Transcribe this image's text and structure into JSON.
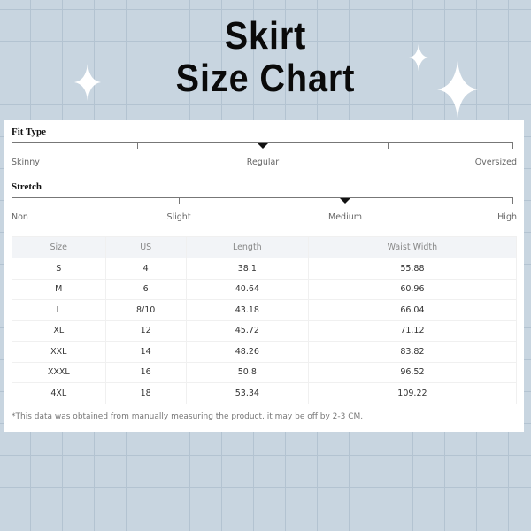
{
  "title": {
    "line1": "Skirt",
    "line2": "Size Chart"
  },
  "fit_type": {
    "label": "Fit Type",
    "options": [
      "Skinny",
      "Regular",
      "Oversized"
    ],
    "selected": "Regular"
  },
  "stretch": {
    "label": "Stretch",
    "options": [
      "Non",
      "Slight",
      "Medium",
      "High"
    ],
    "selected": "Medium"
  },
  "table": {
    "headers": [
      "Size",
      "US",
      "Length",
      "Waist Width"
    ],
    "rows": [
      [
        "S",
        "4",
        "38.1",
        "55.88"
      ],
      [
        "M",
        "6",
        "40.64",
        "60.96"
      ],
      [
        "L",
        "8/10",
        "43.18",
        "66.04"
      ],
      [
        "XL",
        "12",
        "45.72",
        "71.12"
      ],
      [
        "XXL",
        "14",
        "48.26",
        "83.82"
      ],
      [
        "XXXL",
        "16",
        "50.8",
        "96.52"
      ],
      [
        "4XL",
        "18",
        "53.34",
        "109.22"
      ]
    ]
  },
  "note": "*This data was obtained from manually measuring the product, it may be off by 2-3 CM.",
  "colors": {
    "background": "#c8d5e0",
    "card": "#ffffff",
    "header_bg": "#f2f4f7"
  }
}
